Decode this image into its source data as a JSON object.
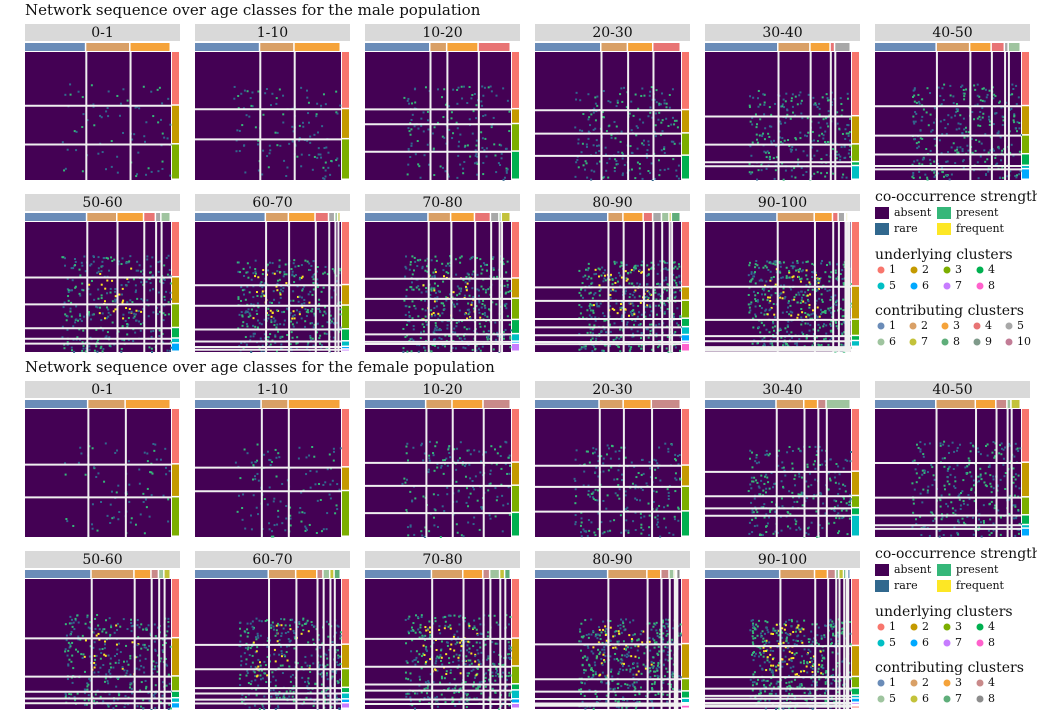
{
  "sections": [
    {
      "title": "Network sequence over age classes for the male population",
      "panels": [
        "0-1",
        "1-10",
        "10-20",
        "20-30",
        "30-40",
        "40-50",
        "50-60",
        "60-70",
        "70-80",
        "80-90",
        "90-100"
      ],
      "legend": {
        "strength_title": "co-occurrence strength",
        "strength": [
          {
            "name": "absent",
            "color": "#440154"
          },
          {
            "name": "present",
            "color": "#35b779"
          },
          {
            "name": "rare",
            "color": "#31688e"
          },
          {
            "name": "frequent",
            "color": "#fde725"
          }
        ],
        "underlying_title": "underlying clusters",
        "underlying": [
          {
            "name": "1",
            "color": "#f8766d"
          },
          {
            "name": "2",
            "color": "#c49a00"
          },
          {
            "name": "3",
            "color": "#7cae00"
          },
          {
            "name": "4",
            "color": "#00b050"
          },
          {
            "name": "5",
            "color": "#00bfc4"
          },
          {
            "name": "6",
            "color": "#00a9ff"
          },
          {
            "name": "7",
            "color": "#c77cff"
          },
          {
            "name": "8",
            "color": "#ff61cc"
          }
        ],
        "contributing_title": "contributing clusters",
        "contributing": [
          {
            "name": "1",
            "color": "#6a8cb8"
          },
          {
            "name": "2",
            "color": "#d9a066"
          },
          {
            "name": "3",
            "color": "#f5a33a"
          },
          {
            "name": "4",
            "color": "#e87474"
          },
          {
            "name": "5",
            "color": "#a8a8a8"
          },
          {
            "name": "6",
            "color": "#9fc49f"
          },
          {
            "name": "7",
            "color": "#c3c23a"
          },
          {
            "name": "8",
            "color": "#5fae7a"
          },
          {
            "name": "9",
            "color": "#7f9a8a"
          },
          {
            "name": "10",
            "color": "#c27c96"
          }
        ]
      }
    },
    {
      "title": "Network sequence over age classes for the female population",
      "panels": [
        "0-1",
        "1-10",
        "10-20",
        "20-30",
        "30-40",
        "40-50",
        "50-60",
        "60-70",
        "70-80",
        "80-90",
        "90-100"
      ],
      "legend": {
        "strength_title": "co-occurrence strength",
        "strength": [
          {
            "name": "absent",
            "color": "#440154"
          },
          {
            "name": "present",
            "color": "#35b779"
          },
          {
            "name": "rare",
            "color": "#31688e"
          },
          {
            "name": "frequent",
            "color": "#fde725"
          }
        ],
        "underlying_title": "underlying clusters",
        "underlying": [
          {
            "name": "1",
            "color": "#f8766d"
          },
          {
            "name": "2",
            "color": "#c49a00"
          },
          {
            "name": "3",
            "color": "#7cae00"
          },
          {
            "name": "4",
            "color": "#00b050"
          },
          {
            "name": "5",
            "color": "#00bfc4"
          },
          {
            "name": "6",
            "color": "#00a9ff"
          },
          {
            "name": "7",
            "color": "#c77cff"
          },
          {
            "name": "8",
            "color": "#ff61cc"
          }
        ],
        "contributing_title": "contributing clusters",
        "contributing": [
          {
            "name": "1",
            "color": "#6a8cb8"
          },
          {
            "name": "2",
            "color": "#d9a066"
          },
          {
            "name": "3",
            "color": "#f5a33a"
          },
          {
            "name": "4",
            "color": "#c98a8a"
          },
          {
            "name": "5",
            "color": "#9fc49f"
          },
          {
            "name": "6",
            "color": "#c3c23a"
          },
          {
            "name": "7",
            "color": "#5fae7a"
          },
          {
            "name": "8",
            "color": "#8c8c8c"
          }
        ]
      }
    }
  ]
}
